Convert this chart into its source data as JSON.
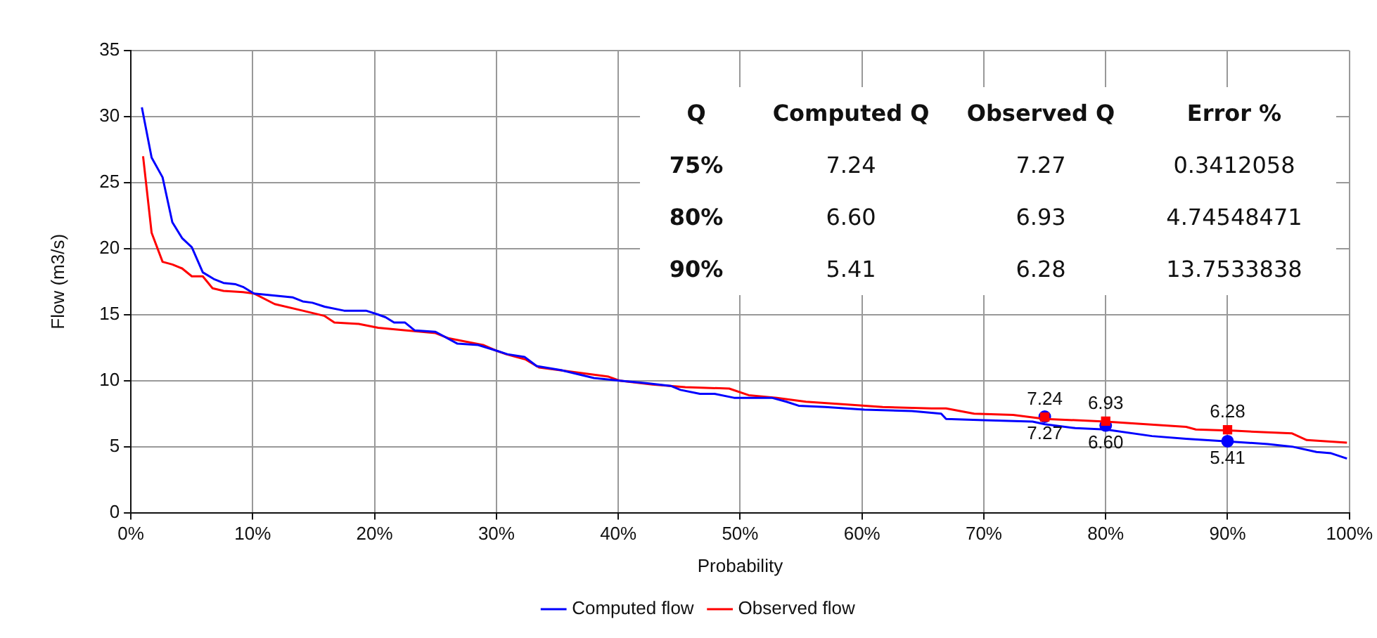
{
  "chart_data": {
    "type": "line",
    "xlabel": "Probability",
    "ylabel": "Flow (m3/s)",
    "xlim": [
      0,
      100
    ],
    "xticks": [
      {
        "value": 0,
        "label": "0%"
      },
      {
        "value": 10,
        "label": "10%"
      },
      {
        "value": 20,
        "label": "20%"
      },
      {
        "value": 30,
        "label": "30%"
      },
      {
        "value": 40,
        "label": "40%"
      },
      {
        "value": 50,
        "label": "50%"
      },
      {
        "value": 60,
        "label": "60%"
      },
      {
        "value": 70,
        "label": "70%"
      },
      {
        "value": 80,
        "label": "80%"
      },
      {
        "value": 90,
        "label": "90%"
      },
      {
        "value": 100,
        "label": "100%"
      }
    ],
    "ylim": [
      0,
      35
    ],
    "yticks": [
      0,
      5,
      10,
      15,
      20,
      25,
      30,
      35
    ],
    "grid": true,
    "legend": "bottom",
    "marker": "none",
    "line_style": "solid",
    "series": [
      {
        "name": "Computed flow",
        "color": "#0000ff",
        "x": [
          0.9,
          1.7,
          2.6,
          3.4,
          4.2,
          5.0,
          5.9,
          6.8,
          7.6,
          8.6,
          9.2,
          10.1,
          13.3,
          14.1,
          14.9,
          15.9,
          17.5,
          19.3,
          20.3,
          20.9,
          21.6,
          22.5,
          23.3,
          25.0,
          26.8,
          28.5,
          29.9,
          30.9,
          32.3,
          33.3,
          35.3,
          38.0,
          40.1,
          42.4,
          44.3,
          45.1,
          46.7,
          47.9,
          49.5,
          52.6,
          53.8,
          54.8,
          57.0,
          60.2,
          64.1,
          66.5,
          66.9,
          70.0,
          74.0,
          75.0,
          77.5,
          80.0,
          83.8,
          86.6,
          90.0,
          93.3,
          95.3,
          97.3,
          98.5,
          99.8
        ],
        "values": [
          30.7,
          26.9,
          25.4,
          22.0,
          20.8,
          20.1,
          18.2,
          17.7,
          17.4,
          17.3,
          17.1,
          16.6,
          16.3,
          16.0,
          15.9,
          15.6,
          15.3,
          15.3,
          15.0,
          14.8,
          14.4,
          14.4,
          13.8,
          13.7,
          12.8,
          12.7,
          12.3,
          12.0,
          11.8,
          11.1,
          10.8,
          10.2,
          10.0,
          9.8,
          9.6,
          9.3,
          9.0,
          9.0,
          8.7,
          8.7,
          8.4,
          8.1,
          8.0,
          7.8,
          7.7,
          7.5,
          7.1,
          7.0,
          6.9,
          6.7,
          6.4,
          6.3,
          5.8,
          5.6,
          5.4,
          5.2,
          5.0,
          4.6,
          4.5,
          4.1
        ]
      },
      {
        "name": "Observed flow",
        "color": "#ff0000",
        "x": [
          1.0,
          1.7,
          2.6,
          3.4,
          4.2,
          5.0,
          5.9,
          6.7,
          7.6,
          9.2,
          10.1,
          11.8,
          14.1,
          15.9,
          16.7,
          18.7,
          20.3,
          22.6,
          25.0,
          26.1,
          28.9,
          29.9,
          30.8,
          32.4,
          33.5,
          36.8,
          39.2,
          40.1,
          42.8,
          45.5,
          49.1,
          50.7,
          53.0,
          55.4,
          58.6,
          61.7,
          65.7,
          66.9,
          69.2,
          72.4,
          75.0,
          80.0,
          86.6,
          87.4,
          90.6,
          95.3,
          96.5,
          99.8
        ],
        "values": [
          27.0,
          21.2,
          19.0,
          18.8,
          18.5,
          17.9,
          17.9,
          17.0,
          16.8,
          16.7,
          16.6,
          15.8,
          15.3,
          14.9,
          14.4,
          14.3,
          14.0,
          13.8,
          13.6,
          13.2,
          12.7,
          12.3,
          12.0,
          11.6,
          11.0,
          10.6,
          10.3,
          10.0,
          9.7,
          9.5,
          9.4,
          8.9,
          8.7,
          8.4,
          8.2,
          8.0,
          7.9,
          7.9,
          7.5,
          7.4,
          7.1,
          6.9,
          6.5,
          6.3,
          6.2,
          6.0,
          5.5,
          5.3
        ]
      },
      {
        "type": "scatter",
        "marker": "square",
        "color": "#ff0000",
        "x": [
          75,
          80,
          90
        ],
        "values": [
          7.24,
          6.93,
          6.28
        ],
        "value_labels": [
          "7.24",
          "6.93",
          "6.28"
        ]
      },
      {
        "type": "scatter",
        "marker": "circle",
        "color": "#0000ff",
        "x": [
          75,
          80,
          90
        ],
        "values": [
          7.27,
          6.6,
          5.41
        ],
        "value_labels": [
          "7.27",
          "6.60",
          "5.41"
        ]
      }
    ],
    "annotations": [
      "Q",
      "Computed Q",
      "Observed Q",
      "Error %",
      "75%",
      "7.24",
      "7.27",
      "0.3412058",
      "80%",
      "6.60",
      "6.93",
      "4.74548471",
      "90%",
      "5.41",
      "6.28",
      "13.7533838"
    ]
  }
}
